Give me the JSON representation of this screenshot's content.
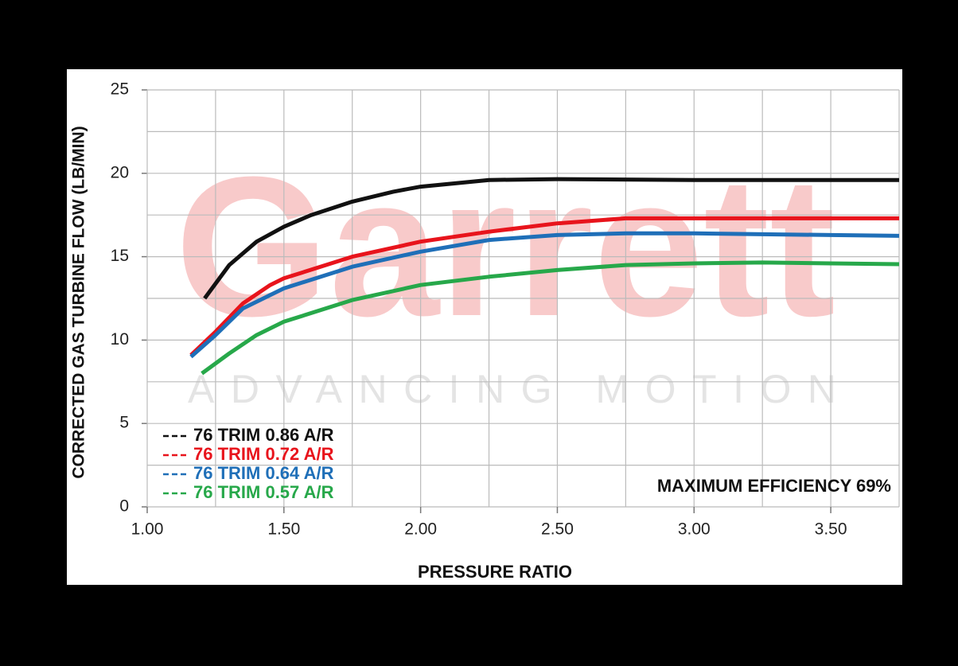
{
  "chart_data": {
    "type": "line",
    "xlabel": "PRESSURE RATIO",
    "ylabel": "CORRECTED GAS TURBINE FLOW (LB/MIN)",
    "watermark": {
      "text": "Garrett",
      "subtext": "ADVANCING MOTION"
    },
    "annotation": "MAXIMUM EFFICIENCY 69%",
    "xlim": [
      1,
      3.75
    ],
    "ylim": [
      0,
      25
    ],
    "xticks": [
      {
        "value": 1,
        "label": "1.00"
      },
      {
        "value": 1.5,
        "label": "1.50"
      },
      {
        "value": 2,
        "label": "2.00"
      },
      {
        "value": 2.5,
        "label": "2.50"
      },
      {
        "value": 3,
        "label": "3.00"
      },
      {
        "value": 3.5,
        "label": "3.50"
      }
    ],
    "yticks": [
      0,
      5,
      10,
      15,
      20,
      25
    ],
    "x_minor_ticks": [
      1.25,
      1.75,
      2.25,
      2.75,
      3.25,
      3.75
    ],
    "y_minor_ticks": [
      2.5,
      7.5,
      12.5,
      17.5,
      22.5
    ],
    "grid": true,
    "legend": "lower-left",
    "series": [
      {
        "name": "76 TRIM 0.86 A/R",
        "color": "#111111",
        "x": [
          1.21,
          1.3,
          1.4,
          1.5,
          1.6,
          1.75,
          1.9,
          2.0,
          2.25,
          2.5,
          3.0,
          3.5,
          3.75
        ],
        "values": [
          12.5,
          14.5,
          15.9,
          16.8,
          17.5,
          18.3,
          18.9,
          19.2,
          19.6,
          19.65,
          19.6,
          19.6,
          19.6
        ]
      },
      {
        "name": "76 TRIM 0.72 A/R",
        "color": "#e8141c",
        "x": [
          1.16,
          1.25,
          1.35,
          1.45,
          1.5,
          1.75,
          2.0,
          2.25,
          2.5,
          2.75,
          3.0,
          3.5,
          3.75
        ],
        "values": [
          9.1,
          10.5,
          12.2,
          13.3,
          13.7,
          15.0,
          15.9,
          16.5,
          17.0,
          17.3,
          17.3,
          17.3,
          17.3
        ]
      },
      {
        "name": "76 TRIM 0.64 A/R",
        "color": "#1f6fb8",
        "x": [
          1.16,
          1.25,
          1.35,
          1.5,
          1.75,
          2.0,
          2.25,
          2.5,
          2.75,
          3.0,
          3.5,
          3.75
        ],
        "values": [
          9.0,
          10.3,
          11.9,
          13.1,
          14.4,
          15.3,
          16.0,
          16.3,
          16.4,
          16.4,
          16.3,
          16.25
        ]
      },
      {
        "name": "76 TRIM 0.57 A/R",
        "color": "#27a84a",
        "x": [
          1.2,
          1.3,
          1.4,
          1.5,
          1.75,
          2.0,
          2.25,
          2.5,
          2.75,
          3.0,
          3.25,
          3.5,
          3.75
        ],
        "values": [
          8.0,
          9.2,
          10.3,
          11.1,
          12.4,
          13.3,
          13.8,
          14.2,
          14.5,
          14.6,
          14.65,
          14.6,
          14.55
        ]
      }
    ]
  }
}
